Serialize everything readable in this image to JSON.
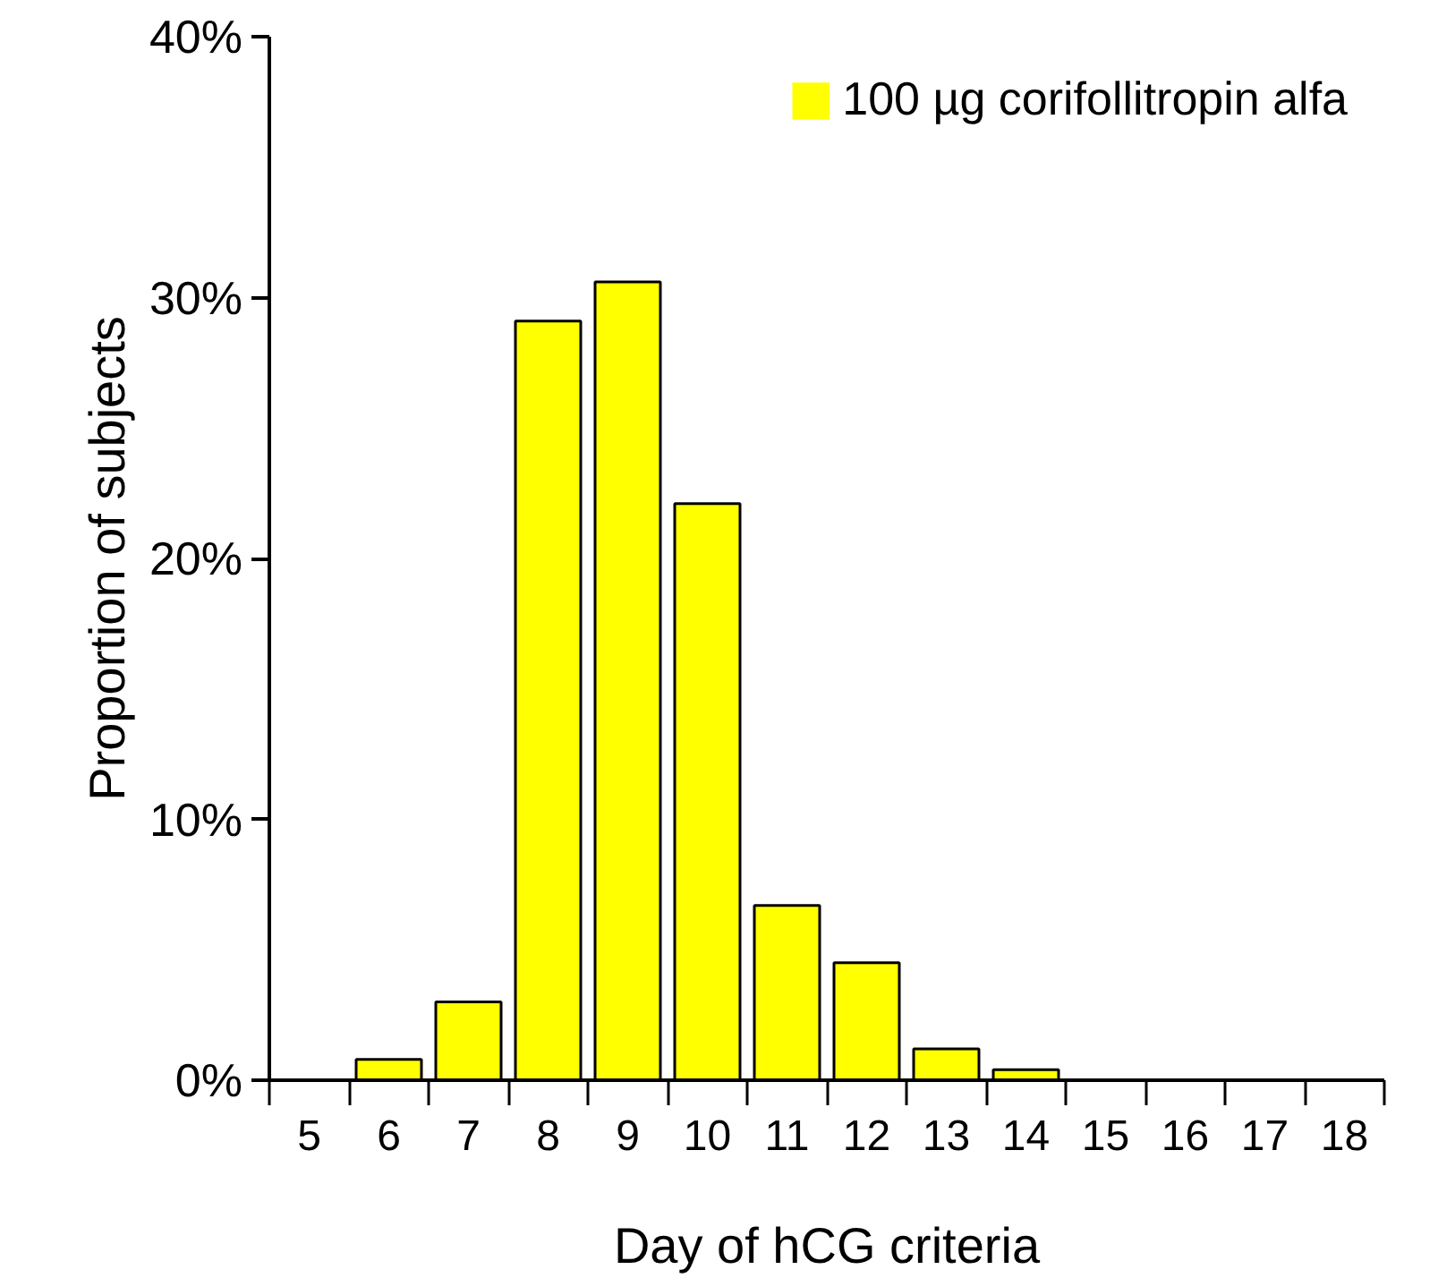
{
  "chart_data": {
    "type": "bar",
    "xlabel": "Day of hCG criteria",
    "ylabel": "Proportion of subjects",
    "categories": [
      "5",
      "6",
      "7",
      "8",
      "9",
      "10",
      "11",
      "12",
      "13",
      "14",
      "15",
      "16",
      "17",
      "18"
    ],
    "series": [
      {
        "name": "100 µg corifollitropin alfa",
        "color": "#ffff00",
        "values": [
          0,
          0.8,
          3.0,
          29.1,
          30.6,
          22.1,
          6.7,
          4.5,
          1.2,
          0.4,
          0,
          0,
          0,
          0
        ]
      }
    ],
    "ylim": [
      0,
      40
    ],
    "yticks": [
      {
        "value": 0,
        "label": "0%"
      },
      {
        "value": 10,
        "label": "10%"
      },
      {
        "value": 20,
        "label": "20%"
      },
      {
        "value": 30,
        "label": "30%"
      },
      {
        "value": 40,
        "label": "40%"
      }
    ],
    "grid": false,
    "legend": "top right"
  }
}
